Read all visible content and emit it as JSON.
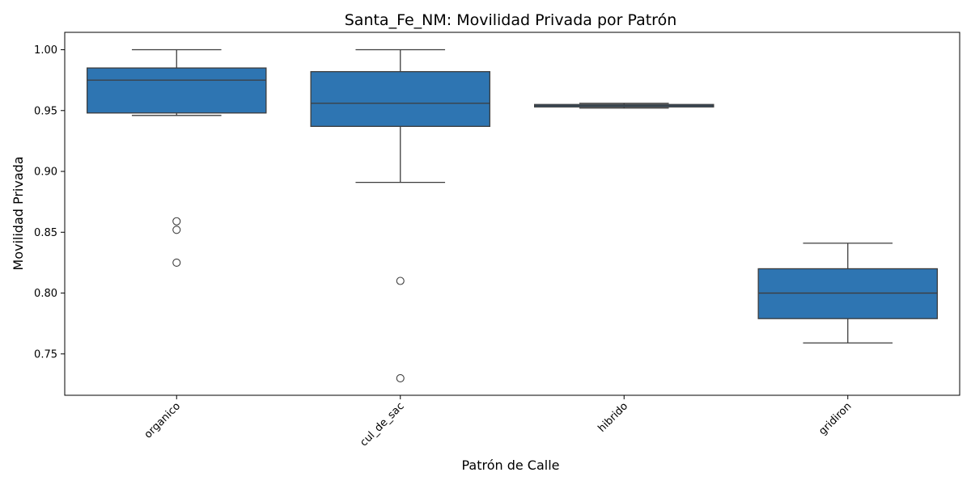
{
  "chart_data": {
    "type": "box",
    "title": "Santa_Fe_NM: Movilidad Privada por Patrón",
    "xlabel": "Patrón de Calle",
    "ylabel": "Movilidad Privada",
    "ylim": [
      0.716,
      1.0143
    ],
    "yticks": [
      "0.75",
      "0.80",
      "0.85",
      "0.90",
      "0.95",
      "1.00"
    ],
    "grid": false,
    "box_color": "#2e75b2",
    "line_color": "#3d3d3d",
    "categories": [
      "organico",
      "cul_de_sac",
      "hibrido",
      "gridiron"
    ],
    "boxes": [
      {
        "category": "organico",
        "whisker_low": 0.946,
        "q1": 0.948,
        "median": 0.975,
        "q3": 0.985,
        "whisker_high": 1.0,
        "outliers": [
          0.859,
          0.852,
          0.825
        ]
      },
      {
        "category": "cul_de_sac",
        "whisker_low": 0.891,
        "q1": 0.937,
        "median": 0.956,
        "q3": 0.982,
        "whisker_high": 1.0,
        "outliers": [
          0.81,
          0.73
        ]
      },
      {
        "category": "hibrido",
        "whisker_low": 0.952,
        "q1": 0.953,
        "median": 0.954,
        "q3": 0.955,
        "whisker_high": 0.956,
        "outliers": []
      },
      {
        "category": "gridiron",
        "whisker_low": 0.759,
        "q1": 0.779,
        "median": 0.8,
        "q3": 0.82,
        "whisker_high": 0.841,
        "outliers": []
      }
    ]
  }
}
